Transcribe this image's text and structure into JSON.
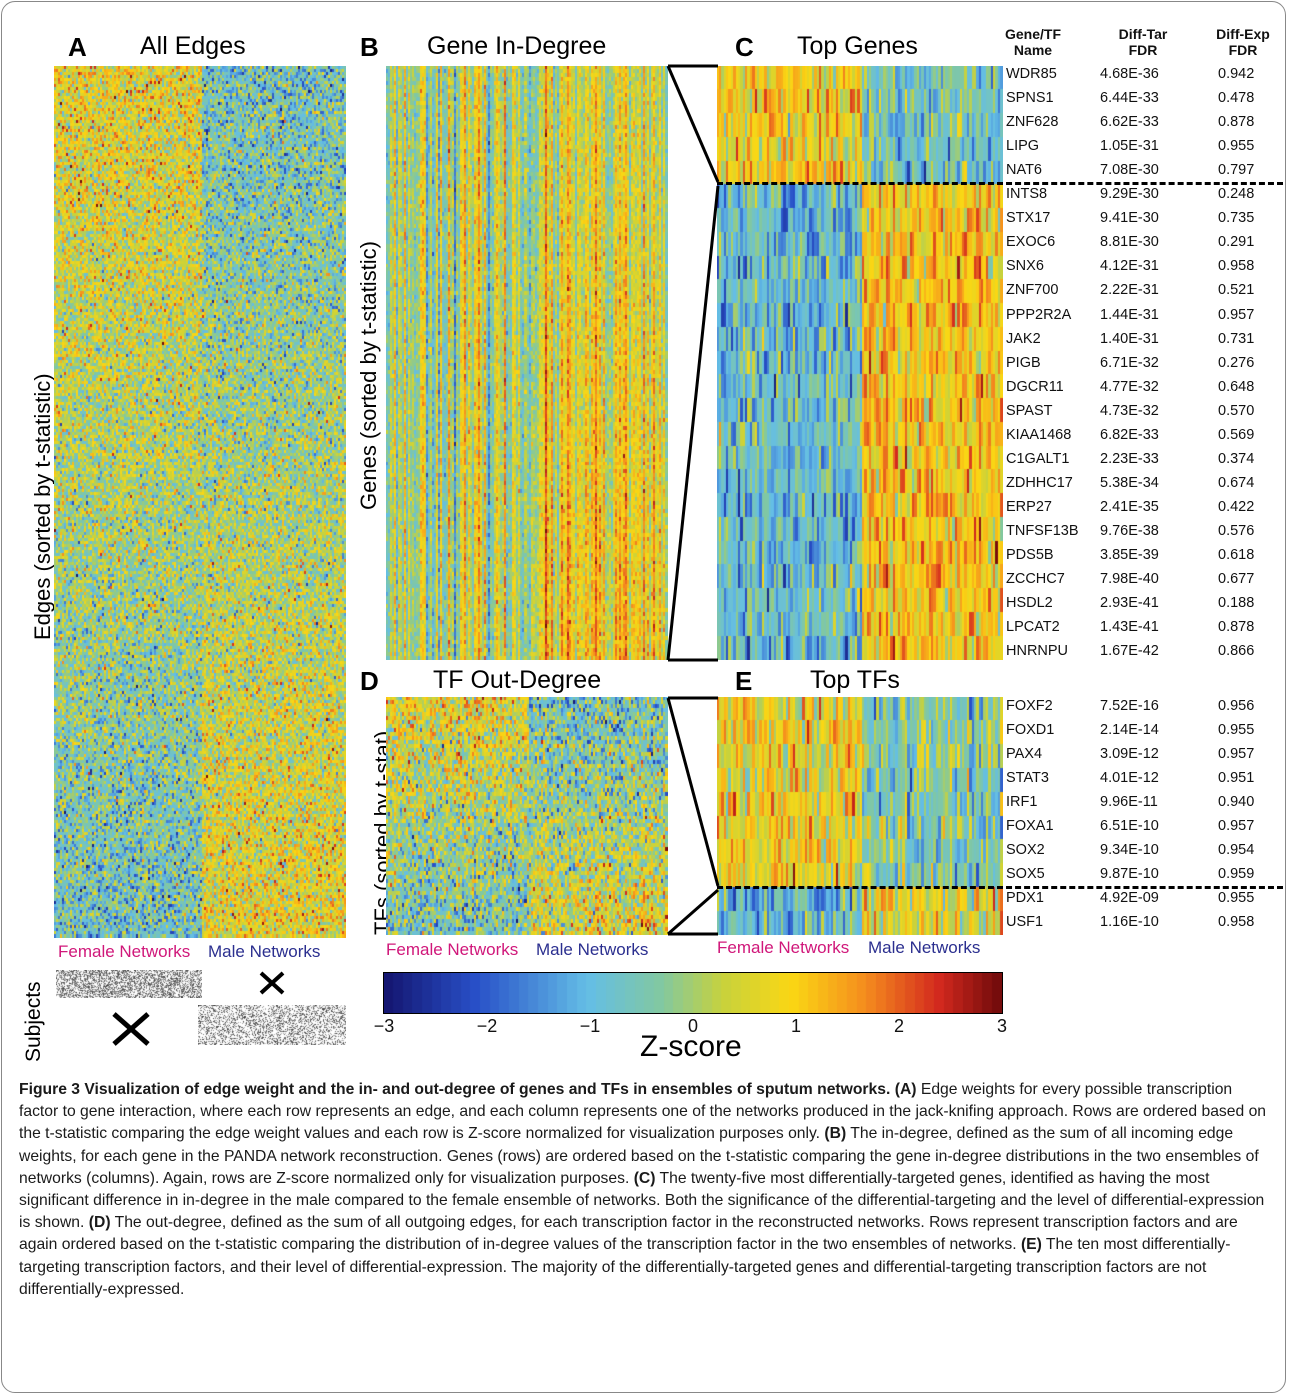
{
  "panels": {
    "A": {
      "letter": "A",
      "title": "All Edges",
      "ylabel": "Edges (sorted by t-statistic)"
    },
    "B": {
      "letter": "B",
      "title": "Gene In-Degree",
      "ylabel": "Genes (sorted by t-statistic)"
    },
    "C": {
      "letter": "C",
      "title": "Top Genes"
    },
    "D": {
      "letter": "D",
      "title": "TF Out-Degree",
      "ylabel": "TFs (sorted by t-stat)"
    },
    "E": {
      "letter": "E",
      "title": "Top TFs"
    }
  },
  "groups": {
    "female": "Female Networks",
    "male": "Male Networks"
  },
  "subjects": {
    "label": "Subjects",
    "mark": "X"
  },
  "table_header": {
    "name_line1": "Gene/TF",
    "name_line2": "Name",
    "tar_line1": "Diff-Tar",
    "tar_line2": "FDR",
    "exp_line1": "Diff-Exp",
    "exp_line2": "FDR"
  },
  "top_genes": [
    {
      "name": "WDR85",
      "tar": "4.68E-36",
      "exp": "0.942"
    },
    {
      "name": "SPNS1",
      "tar": "6.44E-33",
      "exp": "0.478"
    },
    {
      "name": "ZNF628",
      "tar": "6.62E-33",
      "exp": "0.878"
    },
    {
      "name": "LIPG",
      "tar": "1.05E-31",
      "exp": "0.955"
    },
    {
      "name": "NAT6",
      "tar": "7.08E-30",
      "exp": "0.797"
    },
    {
      "name": "INTS8",
      "tar": "9.29E-30",
      "exp": "0.248"
    },
    {
      "name": "STX17",
      "tar": "9.41E-30",
      "exp": "0.735"
    },
    {
      "name": "EXOC6",
      "tar": "8.81E-30",
      "exp": "0.291"
    },
    {
      "name": "SNX6",
      "tar": "4.12E-31",
      "exp": "0.958"
    },
    {
      "name": "ZNF700",
      "tar": "2.22E-31",
      "exp": "0.521"
    },
    {
      "name": "PPP2R2A",
      "tar": "1.44E-31",
      "exp": "0.957"
    },
    {
      "name": "JAK2",
      "tar": "1.40E-31",
      "exp": "0.731"
    },
    {
      "name": "PIGB",
      "tar": "6.71E-32",
      "exp": "0.276"
    },
    {
      "name": "DGCR11",
      "tar": "4.77E-32",
      "exp": "0.648"
    },
    {
      "name": "SPAST",
      "tar": "4.73E-32",
      "exp": "0.570"
    },
    {
      "name": "KIAA1468",
      "tar": "6.82E-33",
      "exp": "0.569"
    },
    {
      "name": "C1GALT1",
      "tar": "2.23E-33",
      "exp": "0.374"
    },
    {
      "name": "ZDHHC17",
      "tar": "5.38E-34",
      "exp": "0.674"
    },
    {
      "name": "ERP27",
      "tar": "2.41E-35",
      "exp": "0.422"
    },
    {
      "name": "TNFSF13B",
      "tar": "9.76E-38",
      "exp": "0.576"
    },
    {
      "name": "PDS5B",
      "tar": "3.85E-39",
      "exp": "0.618"
    },
    {
      "name": "ZCCHC7",
      "tar": "7.98E-40",
      "exp": "0.677"
    },
    {
      "name": "HSDL2",
      "tar": "2.93E-41",
      "exp": "0.188"
    },
    {
      "name": "LPCAT2",
      "tar": "1.43E-41",
      "exp": "0.878"
    },
    {
      "name": "HNRNPU",
      "tar": "1.67E-42",
      "exp": "0.866"
    }
  ],
  "top_tfs": [
    {
      "name": "FOXF2",
      "tar": "7.52E-16",
      "exp": "0.956"
    },
    {
      "name": "FOXD1",
      "tar": "2.14E-14",
      "exp": "0.955"
    },
    {
      "name": "PAX4",
      "tar": "3.09E-12",
      "exp": "0.957"
    },
    {
      "name": "STAT3",
      "tar": "4.01E-12",
      "exp": "0.951"
    },
    {
      "name": "IRF1",
      "tar": "9.96E-11",
      "exp": "0.940"
    },
    {
      "name": "FOXA1",
      "tar": "6.51E-10",
      "exp": "0.957"
    },
    {
      "name": "SOX2",
      "tar": "9.34E-10",
      "exp": "0.954"
    },
    {
      "name": "SOX5",
      "tar": "9.87E-10",
      "exp": "0.959"
    },
    {
      "name": "PDX1",
      "tar": "4.92E-09",
      "exp": "0.955"
    },
    {
      "name": "USF1",
      "tar": "1.16E-10",
      "exp": "0.958"
    }
  ],
  "colorbar": {
    "label": "Z-score",
    "ticks": [
      "−3",
      "−2",
      "−1",
      "0",
      "1",
      "2",
      "3"
    ],
    "min": -3,
    "max": 3
  },
  "caption": {
    "title": "Figure 3 Visualization of edge weight and the in- and out-degree of genes and TFs in ensembles of sputum networks.",
    "A_tag": "(A)",
    "A_text": " Edge weights for every possible transcription factor to gene interaction, where each row represents an edge, and each column represents one of the networks produced in the jack-knifing approach. Rows are ordered based on the t-statistic comparing the edge weight values and each row is Z-score normalized for visualization purposes only. ",
    "B_tag": "(B)",
    "B_text": " The in-degree, defined as the sum of all incoming edge weights, for each gene in the PANDA network reconstruction. Genes (rows) are ordered based on the t-statistic comparing the gene in-degree distributions in the two ensembles of networks (columns). Again, rows are Z-score normalized only for visualization purposes. ",
    "C_tag": "(C)",
    "C_text": " The twenty-five most differentially-targeted genes, identified as having the most significant difference in in-degree in the male compared to the female ensemble of networks. Both the significance of the differential-targeting and the level of differential-expression is shown. ",
    "D_tag": "(D)",
    "D_text": " The out-degree, defined as the sum of all outgoing edges, for each transcription factor in the reconstructed networks. Rows represent transcription factors and are again ordered based on the t-statistic comparing the distribution of in-degree values of the transcription factor in the two ensembles of networks. ",
    "E_tag": "(E)",
    "E_text": " The ten most differentially-targeting transcription factors, and their level of differential-expression. The majority of the differentially-targeted genes and differential-targeting transcription factors are not differentially-expressed."
  },
  "colors": {
    "female_label": "#d0177a",
    "male_label": "#2b2f8f"
  }
}
